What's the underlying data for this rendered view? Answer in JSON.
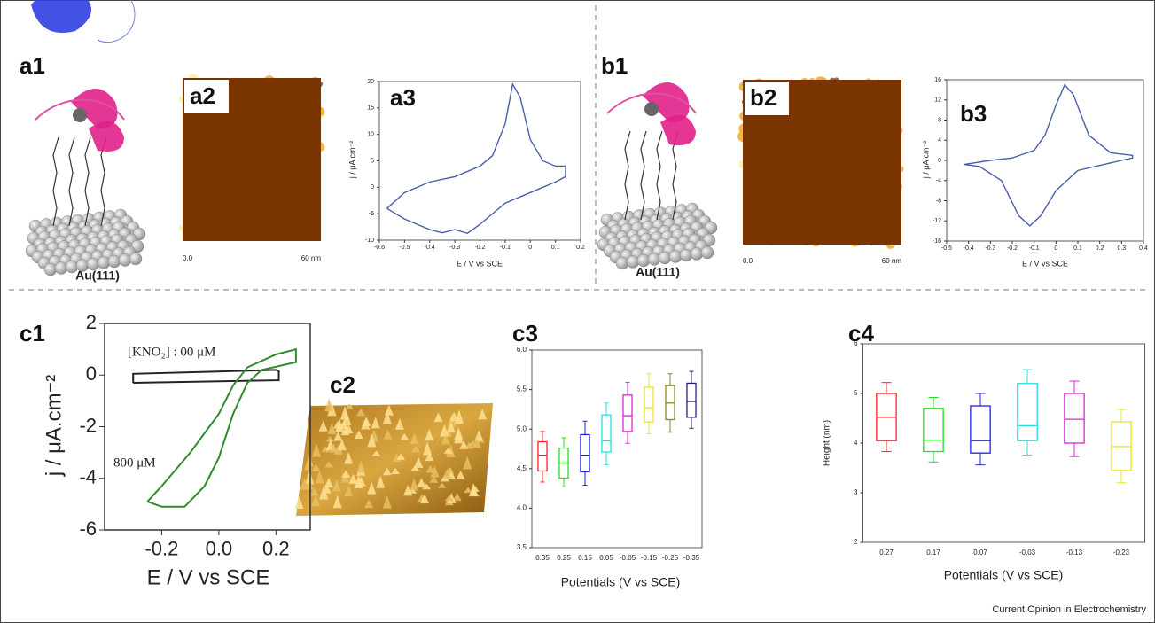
{
  "panels": {
    "a1": "a1",
    "a2": "a2",
    "b1": "b1",
    "b2": "b2",
    "c2": "c2",
    "substrate_a": "Au(111)",
    "substrate_b": "Au(111)",
    "afm_a_start": "0.0",
    "afm_a_end": "60 nm",
    "afm_b_start": "0.0",
    "afm_b_end": "60 nm"
  },
  "footer": "Current Opinion in Electrochemistry",
  "chart_data": [
    {
      "type": "line",
      "title": "a3",
      "x_label": "E / V vs SCE",
      "y_label": "j / μA cm⁻²",
      "color": "#4a5fa8",
      "x": [
        -0.57,
        -0.5,
        -0.4,
        -0.3,
        -0.2,
        -0.15,
        -0.1,
        -0.07,
        -0.04,
        0,
        0.05,
        0.1,
        0.14,
        0.14,
        0.1,
        0,
        -0.1,
        -0.2,
        -0.25,
        -0.3,
        -0.35,
        -0.4,
        -0.5,
        -0.57
      ],
      "values": [
        -4,
        -1,
        1,
        2,
        4,
        6,
        12,
        19.5,
        17,
        9,
        5,
        4,
        4,
        2,
        1,
        -1,
        -3,
        -7,
        -8.7,
        -8,
        -8.6,
        -8,
        -6,
        -4
      ],
      "xlim": [
        -0.6,
        0.2
      ],
      "xticks": [
        -0.6,
        -0.5,
        -0.4,
        -0.3,
        -0.2,
        -0.1,
        0,
        0.1,
        0.2
      ],
      "ylim": [
        -10,
        20
      ],
      "yticks": [
        -10,
        -5,
        0,
        5,
        10,
        15,
        20
      ]
    },
    {
      "type": "line",
      "title": "b3",
      "x_label": "E / V vs SCE",
      "y_label": "j / μA cm⁻²",
      "color": "#4a5fa8",
      "x": [
        -0.42,
        -0.3,
        -0.2,
        -0.1,
        -0.05,
        0,
        0.04,
        0.08,
        0.15,
        0.25,
        0.35,
        0.35,
        0.25,
        0.1,
        0,
        -0.07,
        -0.12,
        -0.17,
        -0.25,
        -0.35,
        -0.42
      ],
      "values": [
        -0.8,
        0,
        0.5,
        2,
        5,
        11,
        15,
        13,
        5,
        1.5,
        1,
        0.5,
        -0.5,
        -2,
        -6,
        -11,
        -13,
        -11,
        -4,
        -1.2,
        -0.8
      ],
      "xlim": [
        -0.5,
        0.4
      ],
      "xticks": [
        -0.5,
        -0.4,
        -0.3,
        -0.2,
        -0.1,
        0,
        0.1,
        0.2,
        0.3,
        0.4
      ],
      "ylim": [
        -16,
        16
      ],
      "yticks": [
        -16,
        -12,
        -8,
        -4,
        0,
        4,
        8,
        12,
        16
      ]
    },
    {
      "type": "line",
      "title": "c1",
      "x_label": "E / V vs SCE",
      "y_label": "j / μA.cm⁻²",
      "series": [
        {
          "name": "[KNO₂] : 00  μM",
          "color": "#222222",
          "x": [
            -0.3,
            -0.3,
            0.2,
            0.21,
            0.21,
            -0.3
          ],
          "values": [
            -0.3,
            0.05,
            0.2,
            0.15,
            -0.2,
            -0.3
          ]
        },
        {
          "name": "800 μM",
          "color": "#2e8b2e",
          "x": [
            -0.25,
            -0.2,
            -0.1,
            0,
            0.05,
            0.1,
            0.2,
            0.27,
            0.27,
            0.15,
            0.1,
            0.05,
            0,
            -0.05,
            -0.12,
            -0.2,
            -0.25
          ],
          "values": [
            -4.9,
            -4.3,
            -3,
            -1.5,
            -0.4,
            0.3,
            0.8,
            1,
            0.5,
            0.2,
            -0.3,
            -1.5,
            -3.2,
            -4.3,
            -5.1,
            -5.1,
            -4.9
          ]
        }
      ],
      "xlim": [
        -0.4,
        0.32
      ],
      "xticks": [
        -0.2,
        {
          "value": 0,
          "label": "0.0"
        },
        0.2
      ],
      "ylim": [
        -6,
        2
      ],
      "yticks": [
        -6,
        -4,
        -2,
        0,
        2
      ]
    },
    {
      "type": "box",
      "title": "c3",
      "x_label": "Potentials (V vs SCE)",
      "categories": [
        "0.35",
        "0.25",
        "0.15",
        "0.05",
        "-0.05",
        "-0.15",
        "-0.25",
        "-0.35"
      ],
      "colors": [
        "#ff2020",
        "#20e020",
        "#2020e0",
        "#20e0e0",
        "#e020e0",
        "#e8e820",
        "#8a8a20",
        "#202080"
      ],
      "data": [
        [
          4.33,
          4.47,
          4.67,
          4.84,
          4.97
        ],
        [
          4.27,
          4.38,
          4.57,
          4.76,
          4.89
        ],
        [
          4.29,
          4.46,
          4.67,
          4.93,
          5.1
        ],
        [
          4.55,
          4.71,
          4.85,
          5.18,
          5.33
        ],
        [
          4.82,
          4.97,
          5.17,
          5.43,
          5.59
        ],
        [
          4.94,
          5.09,
          5.27,
          5.53,
          5.7
        ],
        [
          4.96,
          5.12,
          5.33,
          5.55,
          5.7
        ],
        [
          5.01,
          5.15,
          5.35,
          5.58,
          5.73
        ]
      ],
      "ylim": [
        3.5,
        6
      ],
      "yticks": [
        3.5,
        {
          "value": 4,
          "label": "4.0"
        },
        4.5,
        {
          "value": 5,
          "label": "5.0"
        },
        5.5,
        {
          "value": 6,
          "label": "6.0"
        }
      ]
    },
    {
      "type": "box",
      "title": "c4",
      "x_label": "Potentials (V vs SCE)",
      "y_label": "Height (nm)",
      "categories": [
        "0.27",
        "0.17",
        "0.07",
        "-0.03",
        "-0.13",
        "-0.23"
      ],
      "colors": [
        "#ff2020",
        "#20e020",
        "#2020e0",
        "#20e0e0",
        "#e020e0",
        "#e8e820"
      ],
      "data": [
        [
          3.83,
          4.05,
          4.52,
          5,
          5.22
        ],
        [
          3.62,
          3.83,
          4.06,
          4.7,
          4.92
        ],
        [
          3.56,
          3.8,
          4.05,
          4.75,
          5
        ],
        [
          3.76,
          4.05,
          4.35,
          5.2,
          5.48
        ],
        [
          3.73,
          4,
          4.48,
          5,
          5.25
        ],
        [
          3.2,
          3.45,
          3.93,
          4.43,
          4.68
        ]
      ],
      "ylim": [
        2,
        6
      ],
      "yticks": [
        2,
        3,
        4,
        5,
        6
      ]
    }
  ]
}
